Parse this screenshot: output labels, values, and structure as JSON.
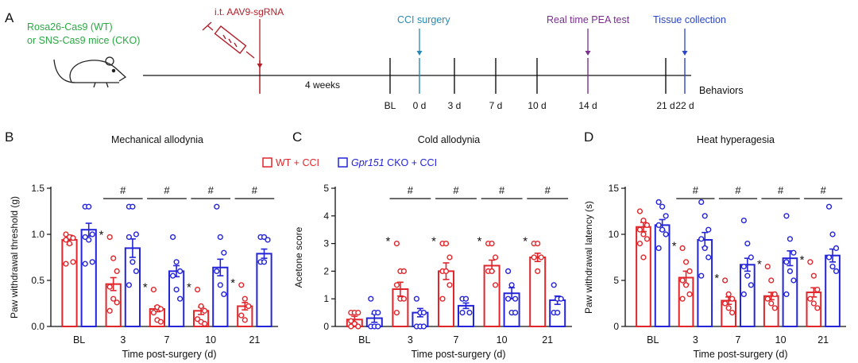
{
  "colors": {
    "wt": "#e0262b",
    "cko": "#2424d8",
    "mice_text": "#2aa843",
    "aav": "#b2202a",
    "cci": "#2a88b4",
    "pea": "#7a2f8f",
    "tissue": "#2a45c8",
    "axis": "#111111"
  },
  "timeline": {
    "panel_label": "A",
    "mice_line1": "Rosa26-Cas9 (WT)",
    "mice_line2": "or SNS-Cas9 mice (CKO)",
    "aav_label": "i.t. AAV9-sgRNA",
    "weeks_label": "4 weeks",
    "cci_label": "CCI surgery",
    "pea_label": "Real time PEA test",
    "tissue_label": "Tissue collection",
    "behaviors_label": "Behaviors",
    "ticks": [
      "BL",
      "0 d",
      "3 d",
      "7 d",
      "10 d",
      "14 d",
      "21 d",
      "22 d"
    ]
  },
  "legend": {
    "wt_label": "WT + CCI",
    "cko_gene": "Gpr151",
    "cko_rest": " CKO + CCI"
  },
  "chart_data": [
    {
      "type": "bar",
      "panel_label": "B",
      "title": "Mechanical allodynia",
      "ylabel": "Paw withdrawal threshold (g)",
      "xlabel": "Time post-surgery (d)",
      "categories": [
        "BL",
        "3",
        "7",
        "10",
        "21"
      ],
      "ylim": [
        0,
        1.5
      ],
      "yticks": [
        "0.0",
        "0.5",
        "1.0",
        "1.5"
      ],
      "series": [
        {
          "name": "WT + CCI",
          "values": [
            0.94,
            0.46,
            0.19,
            0.17,
            0.22
          ],
          "sem": [
            0.05,
            0.07,
            0.03,
            0.04,
            0.04
          ],
          "points": [
            [
              1.0,
              0.97,
              0.96,
              0.94,
              0.9,
              0.7,
              0.68
            ],
            [
              0.97,
              0.74,
              0.6,
              0.43,
              0.3,
              0.26,
              0.17
            ],
            [
              0.4,
              0.21,
              0.19,
              0.15,
              0.07,
              0.05
            ],
            [
              0.4,
              0.22,
              0.17,
              0.08,
              0.05,
              0.03
            ],
            [
              0.45,
              0.3,
              0.22,
              0.12,
              0.07
            ]
          ]
        },
        {
          "name": "Gpr151 CKO + CCI",
          "values": [
            1.05,
            0.85,
            0.6,
            0.64,
            0.79
          ],
          "sem": [
            0.07,
            0.1,
            0.06,
            0.09,
            0.05
          ],
          "points": [
            [
              1.3,
              1.3,
              1.0,
              0.97,
              0.94,
              0.7,
              0.68
            ],
            [
              1.3,
              1.3,
              1.0,
              0.97,
              0.7,
              0.6,
              0.45
            ],
            [
              0.97,
              0.7,
              0.6,
              0.55,
              0.4,
              0.3
            ],
            [
              1.3,
              0.97,
              0.8,
              0.6,
              0.45,
              0.35
            ],
            [
              0.97,
              0.97,
              0.94,
              0.7,
              0.7
            ]
          ]
        }
      ],
      "significance_star_categories": [
        "3",
        "7",
        "10",
        "21"
      ],
      "significance_hash_categories": [
        "3",
        "7",
        "10",
        "21"
      ],
      "star_label": "*",
      "hash_label": "#"
    },
    {
      "type": "bar",
      "panel_label": "C",
      "title": "Cold allodynia",
      "ylabel": "Acetone score",
      "xlabel": "Time post-surgery (d)",
      "categories": [
        "BL",
        "3",
        "7",
        "10",
        "21"
      ],
      "ylim": [
        0,
        5
      ],
      "yticks": [
        "0",
        "1",
        "2",
        "3",
        "4",
        "5"
      ],
      "series": [
        {
          "name": "WT + CCI",
          "values": [
            0.25,
            1.35,
            2.0,
            2.2,
            2.5
          ],
          "sem": [
            0.12,
            0.25,
            0.3,
            0.2,
            0.15
          ],
          "points": [
            [
              0.5,
              0.5,
              0.5,
              0.2,
              0.1,
              0.0,
              0.0
            ],
            [
              3.0,
              2.0,
              2.0,
              1.5,
              1.0,
              1.0,
              0.5
            ],
            [
              3.0,
              3.0,
              2.5,
              2.0,
              2.0,
              1.5,
              1.0
            ],
            [
              3.0,
              3.0,
              2.5,
              2.0,
              2.0,
              1.5
            ],
            [
              3.0,
              3.0,
              2.5,
              2.5,
              2.0
            ]
          ]
        },
        {
          "name": "Gpr151 CKO + CCI",
          "values": [
            0.3,
            0.5,
            0.75,
            1.2,
            0.95
          ],
          "sem": [
            0.15,
            0.15,
            0.1,
            0.2,
            0.15
          ],
          "points": [
            [
              1.0,
              0.5,
              0.5,
              0.0,
              0.0,
              0.0
            ],
            [
              1.0,
              0.5,
              0.5,
              0.0,
              0.0,
              0.0
            ],
            [
              1.0,
              1.0,
              0.5,
              0.5
            ],
            [
              2.0,
              1.5,
              1.0,
              1.0,
              0.5,
              0.5
            ],
            [
              1.5,
              1.0,
              1.0,
              0.5,
              0.5
            ]
          ]
        }
      ],
      "significance_star_categories": [
        "3",
        "7",
        "10",
        "21"
      ],
      "significance_hash_categories": [
        "3",
        "7",
        "10",
        "21"
      ],
      "star_label": "*",
      "hash_label": "#"
    },
    {
      "type": "bar",
      "panel_label": "D",
      "title": "Heat hyperagesia",
      "ylabel": "Paw withdrawal latency (s)",
      "xlabel": "Time post-surgery (d)",
      "categories": [
        "BL",
        "3",
        "7",
        "10",
        "21"
      ],
      "ylim": [
        0,
        15
      ],
      "yticks": [
        "0",
        "5",
        "10",
        "15"
      ],
      "series": [
        {
          "name": "WT + CCI",
          "values": [
            10.8,
            5.3,
            2.8,
            3.3,
            3.7
          ],
          "sem": [
            0.5,
            0.7,
            0.4,
            0.4,
            0.5
          ],
          "points": [
            [
              12.5,
              11.5,
              11.0,
              10.5,
              10.0,
              9.5,
              9.0,
              7.5
            ],
            [
              8.5,
              7.0,
              6.0,
              5.0,
              4.5,
              3.5,
              3.0
            ],
            [
              5.0,
              3.5,
              3.0,
              2.5,
              2.0,
              1.5
            ],
            [
              6.5,
              5.0,
              3.5,
              3.0,
              2.5,
              2.0
            ],
            [
              7.0,
              5.5,
              4.0,
              3.0,
              2.5,
              2.0
            ]
          ]
        },
        {
          "name": "Gpr151 CKO + CCI",
          "values": [
            11.0,
            9.4,
            6.7,
            7.4,
            7.7
          ],
          "sem": [
            0.6,
            0.8,
            0.7,
            0.8,
            0.7
          ],
          "points": [
            [
              13.5,
              13.0,
              12.0,
              11.0,
              10.5,
              10.0,
              8.5
            ],
            [
              13.5,
              12.0,
              10.5,
              9.5,
              8.5,
              7.5,
              5.5
            ],
            [
              11.5,
              9.0,
              7.5,
              6.5,
              5.5,
              4.5,
              3.5
            ],
            [
              12.0,
              9.5,
              8.0,
              7.0,
              6.0,
              5.0,
              3.5
            ],
            [
              13.0,
              10.0,
              8.5,
              7.5,
              6.5,
              6.0
            ]
          ]
        }
      ],
      "significance_star_categories": [
        "3",
        "7",
        "10",
        "21"
      ],
      "significance_hash_categories": [
        "3",
        "7",
        "10",
        "21"
      ],
      "star_label": "*",
      "hash_label": "#"
    }
  ]
}
